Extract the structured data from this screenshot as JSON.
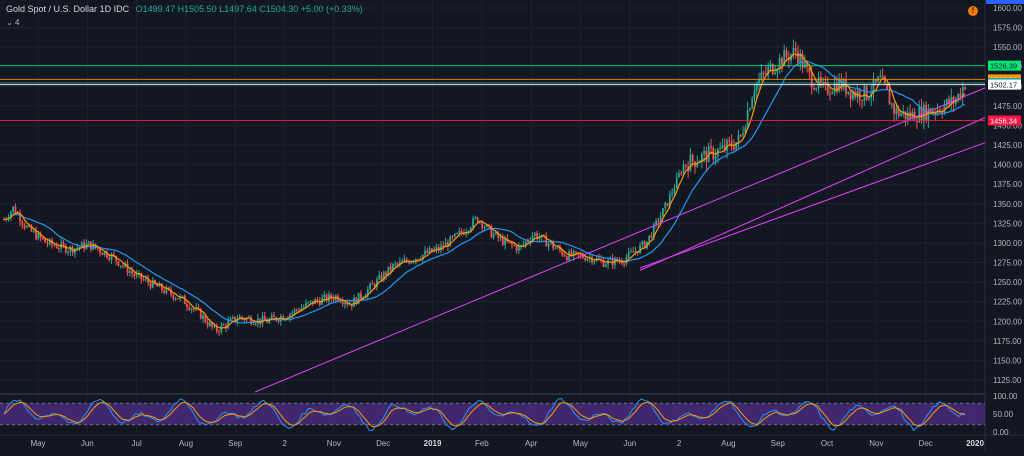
{
  "header": {
    "symbol": "Gold Spot / U.S. Dollar",
    "interval": "1D",
    "source": "IDC",
    "ohlc": "O1499.47  H1505.50  L1497.64  C1504.30  +5.00 (+0.33%)",
    "indicator_count": "4"
  },
  "alert_icon": "!",
  "colors": {
    "background": "#131722",
    "grid": "#1e222d",
    "candle_up": "#26a69a",
    "candle_down": "#ef5350",
    "ma_fast": "#ff9800",
    "ma_slow": "#2196f3",
    "trendline": "#e040fb",
    "resistance_line": "#00e676",
    "support_line": "#ff1744",
    "price_line": "#ffffff",
    "stoch_band": "#4a2a7a"
  },
  "chart_data": [
    {
      "type": "candlestick",
      "title": "Gold Spot / U.S. Dollar",
      "ylim": [
        1125,
        1600
      ],
      "y_ticks": [
        1125,
        1150,
        1175,
        1200,
        1225,
        1250,
        1275,
        1300,
        1325,
        1350,
        1375,
        1400,
        1425,
        1450,
        1475,
        1500,
        1525,
        1550,
        1575,
        1600
      ],
      "x_ticks": [
        "May",
        "Jun",
        "Jul",
        "Aug",
        "Sep",
        "2",
        "Nov",
        "Dec",
        "2019",
        "Feb",
        "Apr",
        "May",
        "Jun",
        "2",
        "Aug",
        "Sep",
        "Oct",
        "Nov",
        "Dec",
        "2020"
      ],
      "price_path": [
        {
          "t": 0,
          "v": 1330
        },
        {
          "t": 2,
          "v": 1345
        },
        {
          "t": 5,
          "v": 1318
        },
        {
          "t": 9,
          "v": 1300
        },
        {
          "t": 14,
          "v": 1292
        },
        {
          "t": 18,
          "v": 1298
        },
        {
          "t": 23,
          "v": 1283
        },
        {
          "t": 28,
          "v": 1258
        },
        {
          "t": 33,
          "v": 1243
        },
        {
          "t": 38,
          "v": 1228
        },
        {
          "t": 42,
          "v": 1208
        },
        {
          "t": 45,
          "v": 1188
        },
        {
          "t": 50,
          "v": 1205
        },
        {
          "t": 56,
          "v": 1200
        },
        {
          "t": 61,
          "v": 1210
        },
        {
          "t": 66,
          "v": 1225
        },
        {
          "t": 71,
          "v": 1232
        },
        {
          "t": 74,
          "v": 1222
        },
        {
          "t": 78,
          "v": 1242
        },
        {
          "t": 83,
          "v": 1270
        },
        {
          "t": 88,
          "v": 1282
        },
        {
          "t": 93,
          "v": 1293
        },
        {
          "t": 98,
          "v": 1315
        },
        {
          "t": 101,
          "v": 1332
        },
        {
          "t": 104,
          "v": 1312
        },
        {
          "t": 107,
          "v": 1300
        },
        {
          "t": 110,
          "v": 1293
        },
        {
          "t": 113,
          "v": 1312
        },
        {
          "t": 117,
          "v": 1296
        },
        {
          "t": 120,
          "v": 1284
        },
        {
          "t": 125,
          "v": 1282
        },
        {
          "t": 128,
          "v": 1275
        },
        {
          "t": 132,
          "v": 1278
        },
        {
          "t": 137,
          "v": 1300
        },
        {
          "t": 141,
          "v": 1345
        },
        {
          "t": 145,
          "v": 1400
        },
        {
          "t": 149,
          "v": 1410
        },
        {
          "t": 153,
          "v": 1418
        },
        {
          "t": 157,
          "v": 1432
        },
        {
          "t": 160,
          "v": 1500
        },
        {
          "t": 163,
          "v": 1520
        },
        {
          "t": 166,
          "v": 1535
        },
        {
          "t": 169,
          "v": 1545
        },
        {
          "t": 172,
          "v": 1510
        },
        {
          "t": 175,
          "v": 1495
        },
        {
          "t": 178,
          "v": 1505
        },
        {
          "t": 181,
          "v": 1492
        },
        {
          "t": 184,
          "v": 1490
        },
        {
          "t": 187,
          "v": 1508
        },
        {
          "t": 190,
          "v": 1468
        },
        {
          "t": 193,
          "v": 1462
        },
        {
          "t": 197,
          "v": 1468
        },
        {
          "t": 200,
          "v": 1474
        },
        {
          "t": 203,
          "v": 1482
        },
        {
          "t": 205,
          "v": 1504
        }
      ],
      "moving_averages": [
        "fast",
        "slow"
      ],
      "horizontal_levels": [
        {
          "value": 1526.39,
          "label": "1526.39",
          "color": "#00e676"
        },
        {
          "value": 1508.8,
          "label": "1508.80",
          "color": "#ff9800"
        },
        {
          "value": 1504.3,
          "label": "1504.30",
          "color": "#26a69a"
        },
        {
          "value": 1502.17,
          "label": "1502.17",
          "color": "#ffffff"
        },
        {
          "value": 1456.34,
          "label": "1456.34",
          "color": "#ff1744"
        }
      ],
      "last_price": 1504.3
    },
    {
      "type": "line",
      "title": "Stochastic",
      "ylim": [
        0,
        100
      ],
      "y_ticks": [
        "100.00",
        "50.00",
        "0.00"
      ],
      "band": [
        20,
        80
      ]
    }
  ]
}
